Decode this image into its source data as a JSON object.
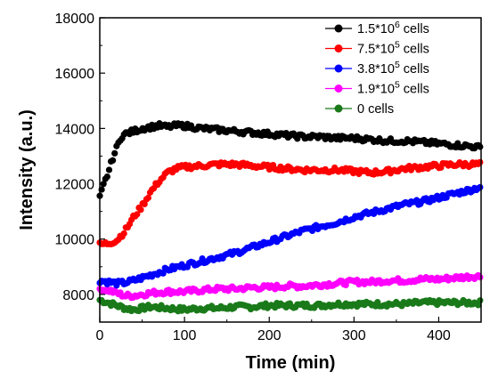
{
  "chart_data": {
    "type": "scatter",
    "title": "",
    "xlabel": "Time (min)",
    "ylabel": "Intensity (a.u.)",
    "xlim": [
      0,
      450
    ],
    "ylim": [
      7000,
      18000
    ],
    "x_ticks": [
      0,
      100,
      200,
      300,
      400
    ],
    "y_ticks": [
      8000,
      10000,
      12000,
      14000,
      16000,
      18000
    ],
    "grid": false,
    "legend_position": "top-right",
    "series": [
      {
        "name_prefix": "1.5*10",
        "name_exp": "6",
        "name_suffix": " cells",
        "color": "#000000",
        "points": [
          [
            0,
            11500
          ],
          [
            5,
            12000
          ],
          [
            10,
            12400
          ],
          [
            15,
            12900
          ],
          [
            20,
            13300
          ],
          [
            25,
            13700
          ],
          [
            30,
            13800
          ],
          [
            40,
            13900
          ],
          [
            50,
            14000
          ],
          [
            60,
            14050
          ],
          [
            70,
            14100
          ],
          [
            80,
            14050
          ],
          [
            90,
            14100
          ],
          [
            100,
            14100
          ],
          [
            110,
            14050
          ],
          [
            120,
            14000
          ],
          [
            140,
            13950
          ],
          [
            160,
            13900
          ],
          [
            180,
            13850
          ],
          [
            200,
            13800
          ],
          [
            220,
            13750
          ],
          [
            240,
            13700
          ],
          [
            260,
            13700
          ],
          [
            280,
            13650
          ],
          [
            300,
            13650
          ],
          [
            320,
            13600
          ],
          [
            340,
            13550
          ],
          [
            360,
            13550
          ],
          [
            380,
            13500
          ],
          [
            400,
            13450
          ],
          [
            420,
            13400
          ],
          [
            440,
            13350
          ],
          [
            450,
            13300
          ]
        ]
      },
      {
        "name_prefix": "7.5*10",
        "name_exp": "5",
        "name_suffix": " cells",
        "color": "#ff0000",
        "points": [
          [
            0,
            9800
          ],
          [
            10,
            9850
          ],
          [
            20,
            9950
          ],
          [
            30,
            10300
          ],
          [
            40,
            10800
          ],
          [
            50,
            11200
          ],
          [
            60,
            11700
          ],
          [
            70,
            12100
          ],
          [
            80,
            12400
          ],
          [
            90,
            12550
          ],
          [
            100,
            12600
          ],
          [
            120,
            12650
          ],
          [
            140,
            12700
          ],
          [
            160,
            12700
          ],
          [
            180,
            12650
          ],
          [
            200,
            12600
          ],
          [
            220,
            12550
          ],
          [
            240,
            12500
          ],
          [
            260,
            12500
          ],
          [
            280,
            12500
          ],
          [
            300,
            12450
          ],
          [
            320,
            12400
          ],
          [
            340,
            12450
          ],
          [
            360,
            12550
          ],
          [
            380,
            12600
          ],
          [
            400,
            12650
          ],
          [
            420,
            12700
          ],
          [
            440,
            12700
          ],
          [
            450,
            12700
          ]
        ]
      },
      {
        "name_prefix": "3.8*10",
        "name_exp": "5",
        "name_suffix": " cells",
        "color": "#0000ff",
        "points": [
          [
            0,
            8500
          ],
          [
            10,
            8450
          ],
          [
            20,
            8400
          ],
          [
            30,
            8420
          ],
          [
            40,
            8500
          ],
          [
            50,
            8600
          ],
          [
            60,
            8700
          ],
          [
            80,
            8900
          ],
          [
            100,
            9050
          ],
          [
            120,
            9200
          ],
          [
            140,
            9350
          ],
          [
            160,
            9500
          ],
          [
            180,
            9700
          ],
          [
            200,
            9900
          ],
          [
            220,
            10100
          ],
          [
            240,
            10300
          ],
          [
            260,
            10450
          ],
          [
            280,
            10600
          ],
          [
            300,
            10800
          ],
          [
            320,
            10950
          ],
          [
            340,
            11100
          ],
          [
            360,
            11250
          ],
          [
            380,
            11350
          ],
          [
            400,
            11500
          ],
          [
            420,
            11650
          ],
          [
            440,
            11800
          ],
          [
            450,
            11900
          ]
        ]
      },
      {
        "name_prefix": "1.9*10",
        "name_exp": "5",
        "name_suffix": " cells",
        "color": "#ff00ff",
        "points": [
          [
            0,
            8200
          ],
          [
            10,
            8150
          ],
          [
            20,
            8050
          ],
          [
            30,
            7950
          ],
          [
            40,
            7950
          ],
          [
            50,
            8000
          ],
          [
            60,
            8050
          ],
          [
            80,
            8100
          ],
          [
            100,
            8100
          ],
          [
            120,
            8150
          ],
          [
            140,
            8200
          ],
          [
            160,
            8200
          ],
          [
            180,
            8250
          ],
          [
            200,
            8250
          ],
          [
            220,
            8300
          ],
          [
            240,
            8300
          ],
          [
            260,
            8350
          ],
          [
            280,
            8400
          ],
          [
            300,
            8450
          ],
          [
            320,
            8450
          ],
          [
            340,
            8500
          ],
          [
            360,
            8500
          ],
          [
            380,
            8550
          ],
          [
            400,
            8550
          ],
          [
            420,
            8600
          ],
          [
            440,
            8650
          ],
          [
            450,
            8650
          ]
        ]
      },
      {
        "name_prefix": "0 cells",
        "name_exp": "",
        "name_suffix": "",
        "color": "#1a7a1a",
        "points": [
          [
            0,
            7800
          ],
          [
            10,
            7700
          ],
          [
            20,
            7600
          ],
          [
            30,
            7500
          ],
          [
            40,
            7450
          ],
          [
            50,
            7500
          ],
          [
            60,
            7550
          ],
          [
            80,
            7500
          ],
          [
            100,
            7450
          ],
          [
            120,
            7500
          ],
          [
            140,
            7500
          ],
          [
            160,
            7550
          ],
          [
            180,
            7550
          ],
          [
            200,
            7600
          ],
          [
            220,
            7600
          ],
          [
            240,
            7600
          ],
          [
            260,
            7600
          ],
          [
            280,
            7650
          ],
          [
            300,
            7650
          ],
          [
            320,
            7650
          ],
          [
            340,
            7650
          ],
          [
            360,
            7650
          ],
          [
            380,
            7700
          ],
          [
            400,
            7700
          ],
          [
            420,
            7700
          ],
          [
            440,
            7700
          ],
          [
            450,
            7700
          ]
        ]
      }
    ]
  }
}
